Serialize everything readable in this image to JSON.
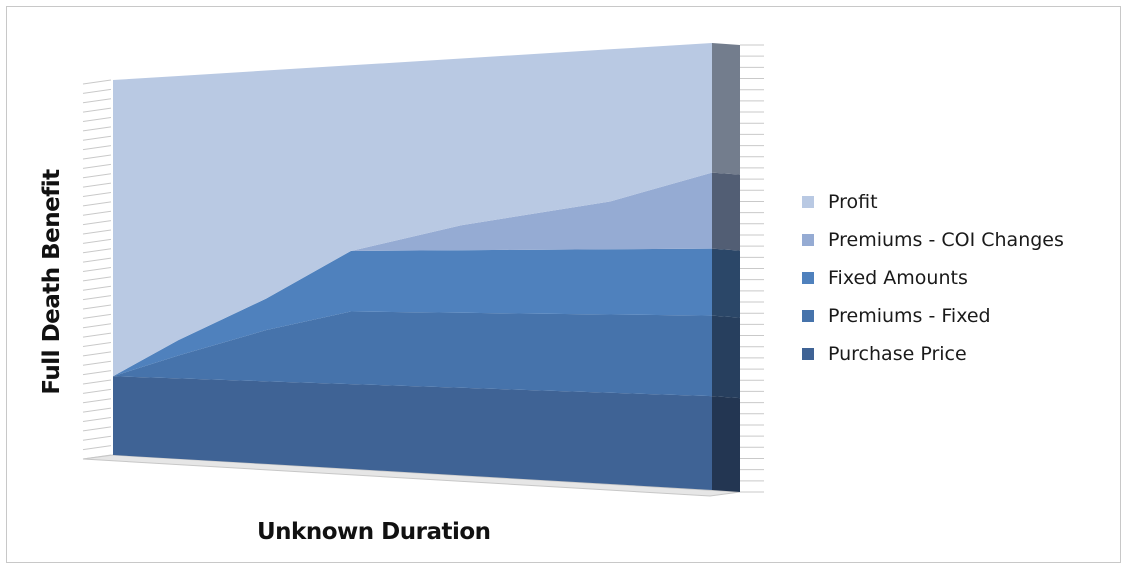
{
  "chart_data": {
    "type": "area",
    "stacked": true,
    "view": "3d",
    "xlabel": "Unknown Duration",
    "ylabel": "Full Death Benefit",
    "categories": [
      "",
      "",
      "",
      "",
      "",
      "",
      "",
      ""
    ],
    "series": [
      {
        "name": "Purchase Price",
        "values": [
          21,
          21,
          21,
          21,
          21,
          21,
          21,
          21
        ],
        "color": "#3f6395"
      },
      {
        "name": "Premiums - Fixed",
        "values": [
          0,
          6,
          13,
          18,
          18,
          18,
          18,
          18
        ],
        "color": "#4673ab"
      },
      {
        "name": "Fixed Amounts",
        "values": [
          0,
          4,
          8,
          15,
          15,
          15,
          15,
          15
        ],
        "color": "#4f81bd"
      },
      {
        "name": "Premiums - COI Changes",
        "values": [
          0,
          0,
          0,
          0,
          6,
          11,
          17,
          17
        ],
        "color": "#95abd3"
      },
      {
        "name": "Profit",
        "values": [
          79,
          69,
          58,
          46,
          40,
          35,
          29,
          29
        ],
        "color": "#b9c9e3"
      }
    ],
    "ylim": [
      0,
      100
    ],
    "grid": false,
    "legend": "right"
  }
}
